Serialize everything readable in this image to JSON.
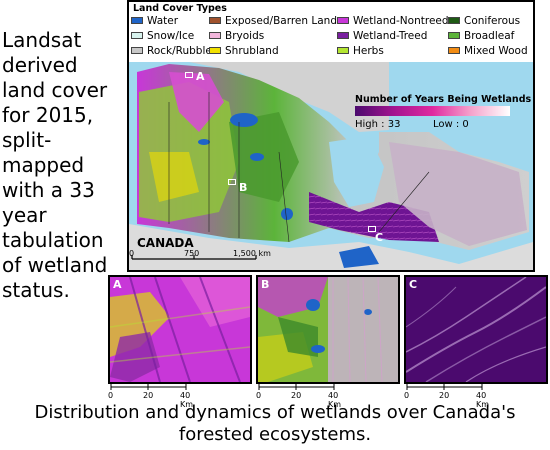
{
  "description": "Landsat derived land cover for 2015, split-mapped with a 33 year tabulation of wetland status.",
  "caption": "Distribution and dynamics of wetlands over Canada's forested ecosystems.",
  "legend": {
    "title": "Land Cover Types",
    "items": [
      {
        "label": "Water",
        "color": "#1f64c8"
      },
      {
        "label": "Snow/Ice",
        "color": "#d8f3ee"
      },
      {
        "label": "Rock/Rubble",
        "color": "#c8c8c8"
      },
      {
        "label": "Exposed/Barren Land",
        "color": "#a0522d"
      },
      {
        "label": "Bryoids",
        "color": "#f3b6dc"
      },
      {
        "label": "Shrubland",
        "color": "#f2e100"
      },
      {
        "label": "Wetland-Nontreed",
        "color": "#c837d8"
      },
      {
        "label": "Wetland-Treed",
        "color": "#7a1fa0"
      },
      {
        "label": "Herbs",
        "color": "#b4e632"
      },
      {
        "label": "Coniferous",
        "color": "#1e5a14"
      },
      {
        "label": "Broadleaf",
        "color": "#5cb43a"
      },
      {
        "label": "Mixed Wood",
        "color": "#f28c14"
      }
    ]
  },
  "wetland_legend": {
    "title": "Number of Years Being Wetlands",
    "high": "High : 33",
    "low": "Low : 0",
    "color_high": "#4b0a6e",
    "color_low": "#ffffff"
  },
  "map": {
    "country_label": "CANADA",
    "markers": {
      "a": "A",
      "b": "B",
      "c": "C"
    },
    "scale": {
      "ticks": [
        "0",
        "750",
        "1,500 km"
      ]
    }
  },
  "insets": [
    {
      "label": "A",
      "scale_ticks": [
        "0",
        "20",
        "40 Km"
      ]
    },
    {
      "label": "B",
      "scale_ticks": [
        "0",
        "20",
        "40 Km"
      ]
    },
    {
      "label": "C",
      "scale_ticks": [
        "0",
        "20",
        "40 Km"
      ]
    }
  ]
}
